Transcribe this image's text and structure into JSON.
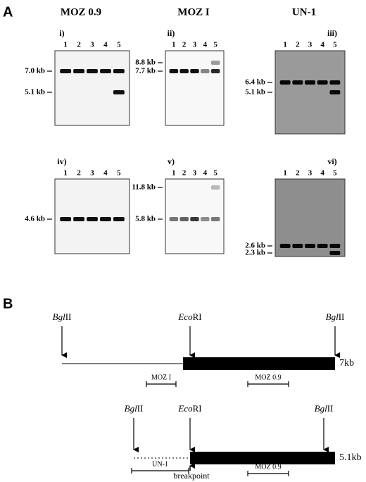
{
  "figure": {
    "part_a": {
      "label": "A",
      "columns": [
        "MOZ 0.9",
        "MOZ I",
        "UN-1"
      ],
      "panels": [
        {
          "label": "i)",
          "lanes": [
            "1",
            "2",
            "3",
            "4",
            "5"
          ],
          "sizes": [
            "7.0 kb",
            "5.1 kb"
          ]
        },
        {
          "label": "ii)",
          "lanes": [
            "1",
            "2",
            "3",
            "4",
            "5"
          ],
          "sizes": [
            "8.8 kb",
            "7.7 kb"
          ]
        },
        {
          "label": "iii)",
          "lanes": [
            "1",
            "2",
            "3",
            "4",
            "5"
          ],
          "sizes": [
            "6.4 kb",
            "5.1 kb"
          ]
        },
        {
          "label": "iv)",
          "lanes": [
            "1",
            "2",
            "3",
            "4",
            "5"
          ],
          "sizes": [
            "4.6 kb"
          ]
        },
        {
          "label": "v)",
          "lanes": [
            "1",
            "2",
            "3",
            "4",
            "5"
          ],
          "sizes": [
            "11.8 kb",
            "5.8 kb"
          ]
        },
        {
          "label": "vi)",
          "lanes": [
            "1",
            "2",
            "3",
            "4",
            "5"
          ],
          "sizes": [
            "2.6 kb",
            "2.3 kb"
          ]
        }
      ]
    },
    "part_b": {
      "label": "B",
      "maps": [
        {
          "sites": [
            {
              "italic": "Bgl",
              "rest": "II"
            },
            {
              "italic": "Eco",
              "rest": "RI"
            },
            {
              "italic": "Bgl",
              "rest": "II"
            }
          ],
          "size": "7kb",
          "probes": [
            "MOZ I",
            "MOZ 0.9"
          ]
        },
        {
          "sites": [
            {
              "italic": "Bgl",
              "rest": "II"
            },
            {
              "italic": "Eco",
              "rest": "RI"
            },
            {
              "italic": "Bgl",
              "rest": "II"
            }
          ],
          "size": "5.1kb",
          "probes": [
            "UN-1",
            "MOZ 0.9"
          ],
          "breakpoint": "breakpoint"
        }
      ]
    }
  }
}
